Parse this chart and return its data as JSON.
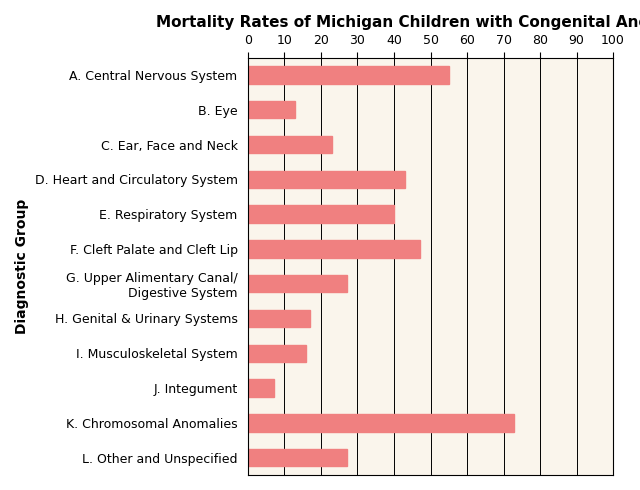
{
  "title": "Mortality Rates of Michigan Children with Congenital Anomalies",
  "categories": [
    "A. Central Nervous System",
    "B. Eye",
    "C. Ear, Face and Neck",
    "D. Heart and Circulatory System",
    "E. Respiratory System",
    "F. Cleft Palate and Cleft Lip",
    "G. Upper Alimentary Canal/\nDigestive System",
    "H. Genital & Urinary Systems",
    "I. Musculoskeletal System",
    "J. Integument",
    "K. Chromosomal Anomalies",
    "L. Other and Unspecified"
  ],
  "values": [
    55,
    13,
    23,
    43,
    40,
    47,
    27,
    17,
    16,
    7,
    73,
    27
  ],
  "bar_color": "#F08080",
  "ylabel": "Diagnostic Group",
  "xlim": [
    0,
    100
  ],
  "xticks": [
    0,
    10,
    20,
    30,
    40,
    50,
    60,
    70,
    80,
    90,
    100
  ],
  "fig_background": "#FFFFFF",
  "plot_background": "#FAF5EC",
  "title_fontsize": 11,
  "axis_label_fontsize": 10,
  "tick_fontsize": 9,
  "bar_height": 0.5
}
